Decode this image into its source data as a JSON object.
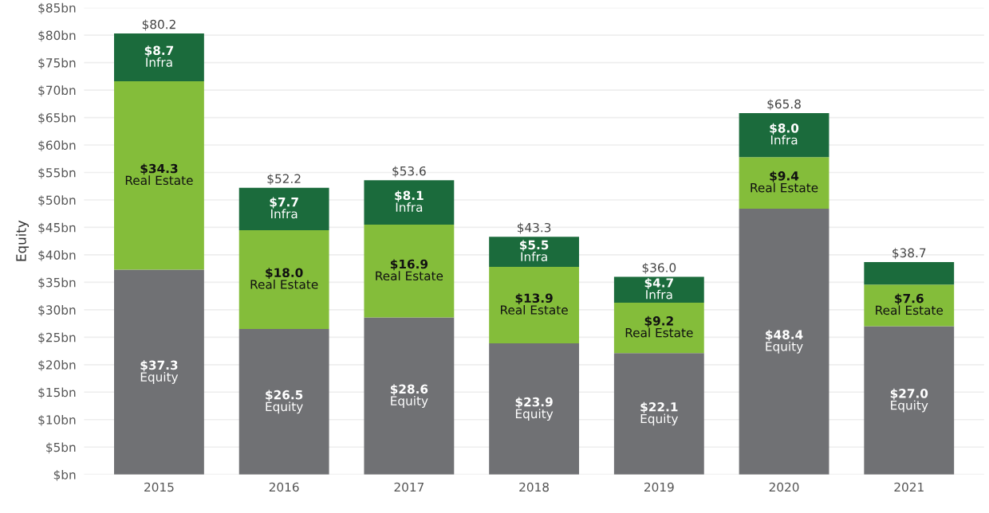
{
  "chart_data": {
    "type": "bar",
    "stacked": true,
    "ylabel": "Equity",
    "categories": [
      "2015",
      "2016",
      "2017",
      "2018",
      "2019",
      "2020",
      "2021"
    ],
    "series": [
      {
        "name": "Equity",
        "color": "#707174",
        "values": [
          37.3,
          26.5,
          28.6,
          23.9,
          22.1,
          48.4,
          27.0
        ],
        "value_labels": [
          "$37.3",
          "$26.5",
          "$28.6",
          "$23.9",
          "$22.1",
          "$48.4",
          "$27.0"
        ]
      },
      {
        "name": "Real Estate",
        "color": "#84bd3a",
        "values": [
          34.3,
          18.0,
          16.9,
          13.9,
          9.2,
          9.4,
          7.6
        ],
        "value_labels": [
          "$34.3",
          "$18.0",
          "$16.9",
          "$13.9",
          "$9.2",
          "$9.4",
          "$7.6"
        ]
      },
      {
        "name": "Infra",
        "color": "#1b6b3c",
        "values": [
          8.7,
          7.7,
          8.1,
          5.5,
          4.7,
          8.0,
          4.1
        ],
        "value_labels": [
          "$8.7",
          "$7.7",
          "$8.1",
          "$5.5",
          "$4.7",
          "$8.0",
          null
        ]
      }
    ],
    "totals": [
      "$80.2",
      "$52.2",
      "$53.6",
      "$43.3",
      "$36.0",
      "$65.8",
      "$38.7"
    ],
    "ylim": [
      0,
      85
    ],
    "yticks": [
      {
        "value": 0,
        "label": "$bn"
      },
      {
        "value": 5,
        "label": "$5bn"
      },
      {
        "value": 10,
        "label": "$10bn"
      },
      {
        "value": 15,
        "label": "$15bn"
      },
      {
        "value": 20,
        "label": "$20bn"
      },
      {
        "value": 25,
        "label": "$25bn"
      },
      {
        "value": 30,
        "label": "$30bn"
      },
      {
        "value": 35,
        "label": "$35bn"
      },
      {
        "value": 40,
        "label": "$40bn"
      },
      {
        "value": 45,
        "label": "$45bn"
      },
      {
        "value": 50,
        "label": "$50bn"
      },
      {
        "value": 55,
        "label": "$55bn"
      },
      {
        "value": 60,
        "label": "$60bn"
      },
      {
        "value": 65,
        "label": "$65bn"
      },
      {
        "value": 70,
        "label": "$70bn"
      },
      {
        "value": 75,
        "label": "$75bn"
      },
      {
        "value": 80,
        "label": "$80bn"
      },
      {
        "value": 85,
        "label": "$85bn"
      }
    ],
    "grid": "y",
    "legend": false
  }
}
